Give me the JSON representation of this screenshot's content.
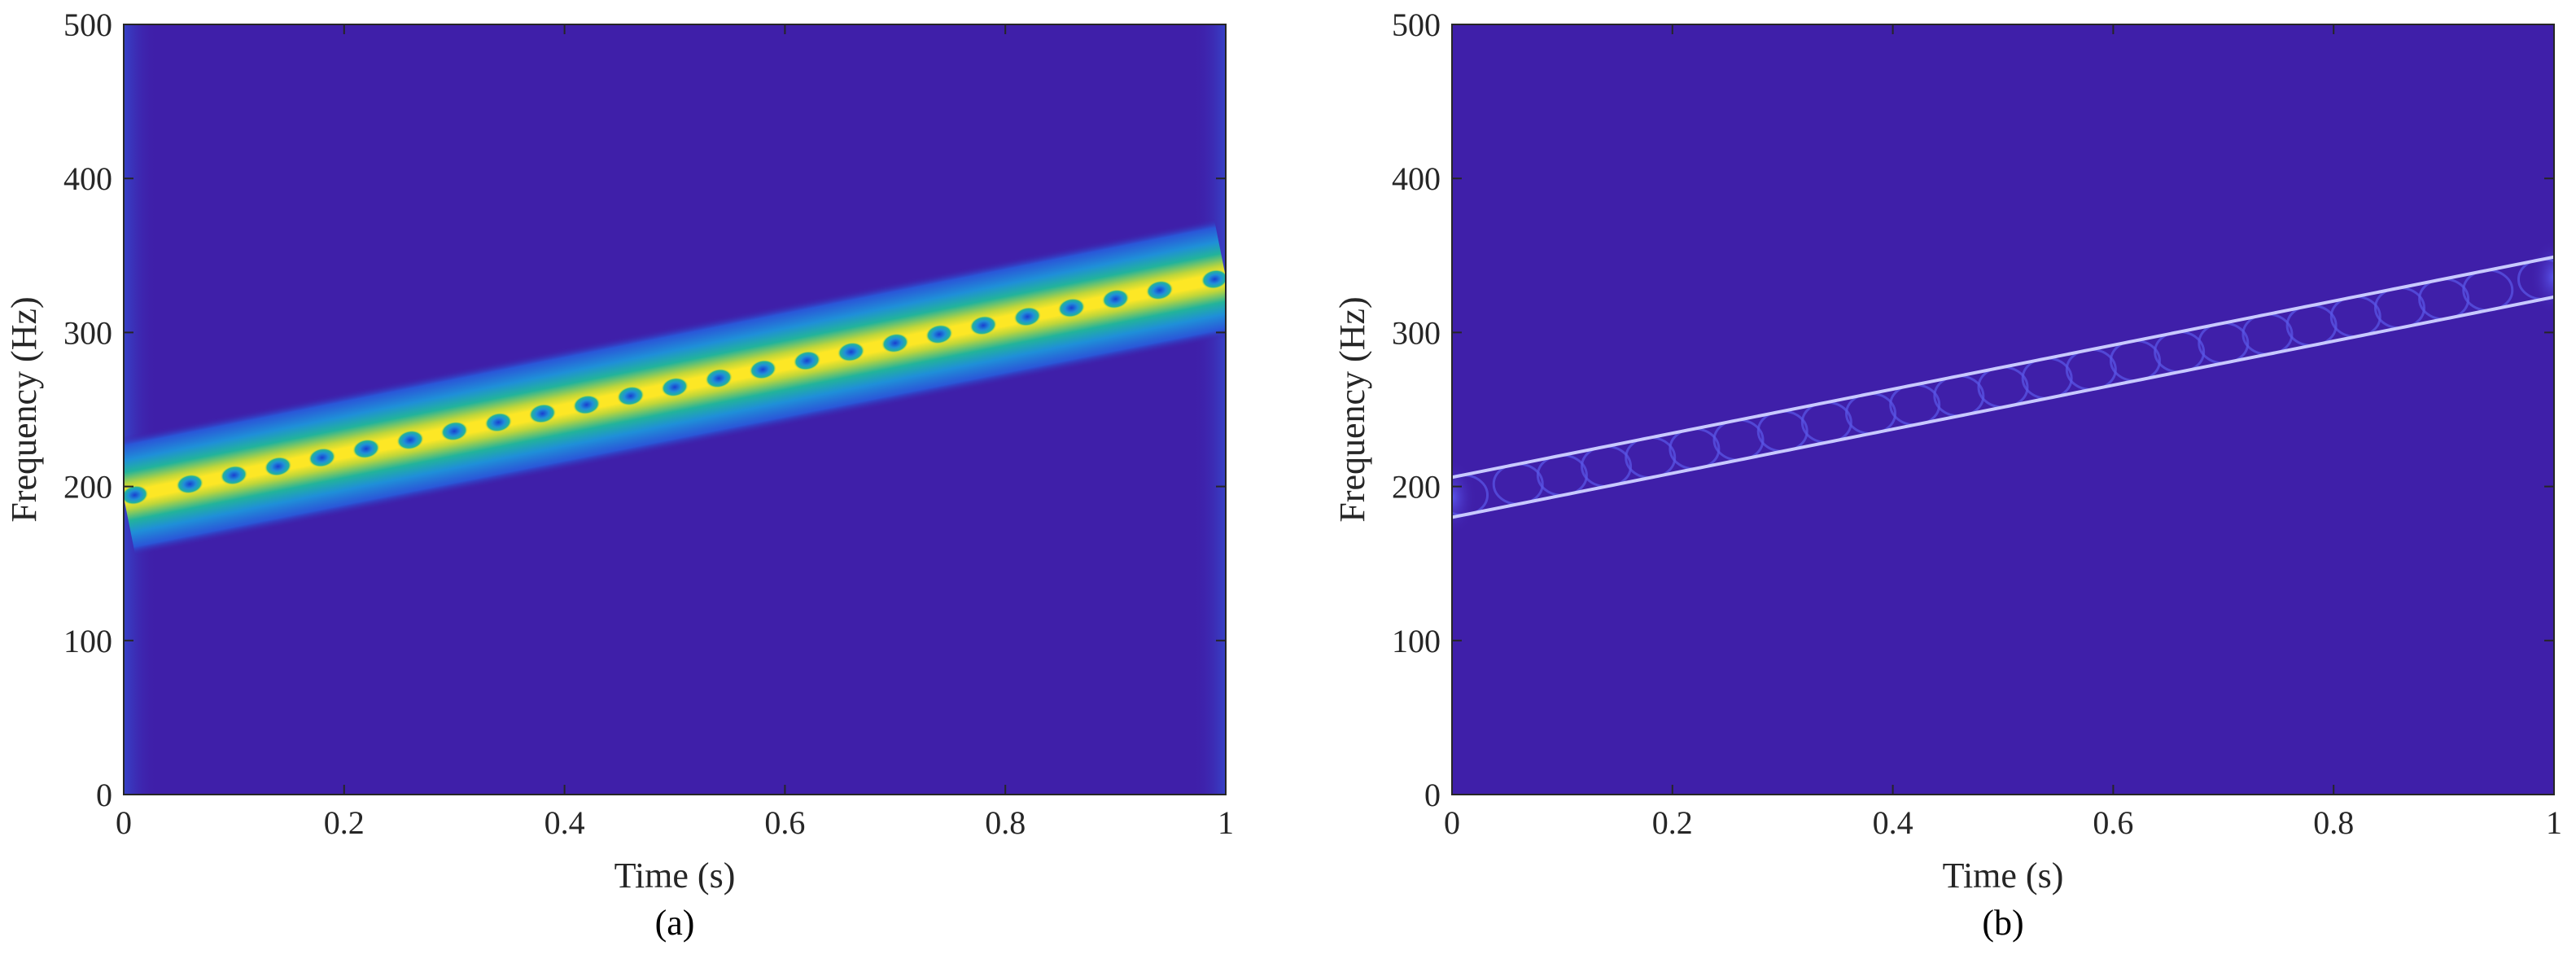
{
  "colors": {
    "background": "#3f1fa9",
    "band_outer": "#1f7fe0",
    "band_mid": "#22b39b",
    "band_core": "#fde725",
    "ridge_line": "#c8c9ff"
  },
  "chart_data": [
    {
      "type": "heatmap",
      "panel_label": "(a)",
      "xlabel": "Time (s)",
      "ylabel": "Frequency (Hz)",
      "xlim": [
        0,
        1
      ],
      "ylim": [
        0,
        500
      ],
      "xticks": [
        0,
        0.2,
        0.4,
        0.6,
        0.8,
        1
      ],
      "xtick_labels": [
        "0",
        "0.2",
        "0.4",
        "0.6",
        "0.8",
        "1"
      ],
      "yticks": [
        0,
        100,
        200,
        300,
        400,
        500
      ],
      "ytick_labels": [
        "0",
        "100",
        "200",
        "300",
        "400",
        "500"
      ],
      "colormap": "parula",
      "ridge": {
        "time": [
          0,
          1
        ],
        "frequency": [
          193,
          336
        ]
      },
      "band_half_width_hz": 17,
      "interference_dot_times": [
        0.01,
        0.06,
        0.1,
        0.14,
        0.18,
        0.22,
        0.26,
        0.3,
        0.34,
        0.38,
        0.42,
        0.46,
        0.5,
        0.54,
        0.58,
        0.62,
        0.66,
        0.7,
        0.74,
        0.78,
        0.82,
        0.86,
        0.9,
        0.94,
        0.99
      ]
    },
    {
      "type": "heatmap",
      "panel_label": "(b)",
      "xlabel": "Time (s)",
      "ylabel": "Frequency (Hz)",
      "xlim": [
        0,
        1
      ],
      "ylim": [
        0,
        500
      ],
      "xticks": [
        0,
        0.2,
        0.4,
        0.6,
        0.8,
        1
      ],
      "xtick_labels": [
        "0",
        "0.2",
        "0.4",
        "0.6",
        "0.8",
        "1"
      ],
      "yticks": [
        0,
        100,
        200,
        300,
        400,
        500
      ],
      "ytick_labels": [
        "0",
        "100",
        "200",
        "300",
        "400",
        "500"
      ],
      "colormap": "parula",
      "ridge": {
        "time": [
          0,
          1
        ],
        "frequency": [
          193,
          336
        ]
      },
      "line_offset_hz": 13,
      "interference_dot_times": [
        0.01,
        0.06,
        0.1,
        0.14,
        0.18,
        0.22,
        0.26,
        0.3,
        0.34,
        0.38,
        0.42,
        0.46,
        0.5,
        0.54,
        0.58,
        0.62,
        0.66,
        0.7,
        0.74,
        0.78,
        0.82,
        0.86,
        0.9,
        0.94,
        0.99
      ]
    }
  ]
}
